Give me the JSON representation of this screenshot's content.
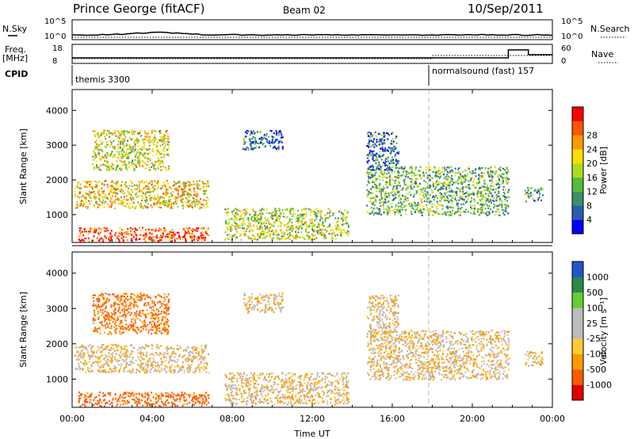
{
  "header": {
    "station": "Prince George (fitACF)",
    "beam": "Beam 02",
    "date": "10/Sep/2011"
  },
  "top_panels": {
    "noise_left_label": "N.Sky",
    "noise_right_label": "N.Search",
    "noise_ticks_left": [
      "10^5",
      "10^0"
    ],
    "noise_ticks_right": [
      "10^5",
      "10^0"
    ],
    "freq_left_label_1": "Freq.",
    "freq_left_label_2": "[MHz]",
    "freq_right_label": "Nave",
    "freq_ticks_left": [
      "18",
      "8"
    ],
    "freq_ticks_right": [
      "60",
      "0"
    ],
    "cpid_label": "CPID",
    "cpid_segments": [
      {
        "label": "themis 3300",
        "start_hour": 0.0
      },
      {
        "label": "normalsound (fast) 157",
        "start_hour": 18.0
      }
    ]
  },
  "colors": {
    "power": [
      "#0000ff",
      "#2a5db0",
      "#3d8f6a",
      "#55bb3a",
      "#aadd22",
      "#ffdd00",
      "#ff9900",
      "#ff5500",
      "#ff0000"
    ],
    "velocity": [
      "#e00000",
      "#ff5a00",
      "#ff9a00",
      "#ffcc33",
      "#bbbbbb",
      "#bbbbbb",
      "#66cc33",
      "#2a8a4a",
      "#2255cc"
    ],
    "grey_line": "#aaaaaa"
  },
  "chart_data": [
    {
      "type": "heatmap",
      "name": "power-panel",
      "ylabel": "Slant Range [km]",
      "y_ticks": [
        1000,
        2000,
        3000,
        4000
      ],
      "ylim": [
        200,
        4600
      ],
      "xlim": [
        0,
        24
      ],
      "colorbar_label": "Power [dB]",
      "colorbar_ticks": [
        "4",
        "8",
        "12",
        "16",
        "20",
        "24",
        "28"
      ],
      "scatter_regions": [
        {
          "x0": 0.3,
          "x1": 6.8,
          "ymin": 250,
          "ymax": 650,
          "value": 26
        },
        {
          "x0": 0.1,
          "x1": 6.8,
          "ymin": 1200,
          "ymax": 2000,
          "value": 18
        },
        {
          "x0": 1.0,
          "x1": 4.8,
          "ymin": 2300,
          "ymax": 3450,
          "value": 15
        },
        {
          "x0": 7.6,
          "x1": 13.8,
          "ymin": 300,
          "ymax": 1200,
          "value": 14
        },
        {
          "x0": 8.5,
          "x1": 10.5,
          "ymin": 2900,
          "ymax": 3450,
          "value": 6
        },
        {
          "x0": 14.7,
          "x1": 21.8,
          "ymin": 1000,
          "ymax": 2400,
          "value": 10
        },
        {
          "x0": 14.7,
          "x1": 16.3,
          "ymin": 2300,
          "ymax": 3400,
          "value": 6
        },
        {
          "x0": 22.6,
          "x1": 23.5,
          "ymin": 1400,
          "ymax": 1800,
          "value": 9
        }
      ]
    },
    {
      "type": "heatmap",
      "name": "velocity-panel",
      "xlabel": "Time UT",
      "ylabel": "Slant Range [km]",
      "y_ticks": [
        1000,
        2000,
        3000,
        4000
      ],
      "ylim": [
        200,
        4600
      ],
      "x_ticks": [
        "00:00",
        "04:00",
        "08:00",
        "12:00",
        "16:00",
        "20:00",
        "00:00"
      ],
      "xlim": [
        0,
        24
      ],
      "colorbar_label": "Velocity [m s⁻¹]",
      "colorbar_ticks": [
        "-1000",
        "-500",
        "-100",
        "-25",
        "25",
        "100",
        "500",
        "1000"
      ],
      "scatter_regions": [
        {
          "x0": 0.3,
          "x1": 6.8,
          "ymin": 250,
          "ymax": 650,
          "value": -150
        },
        {
          "x0": 0.1,
          "x1": 6.8,
          "ymin": 1200,
          "ymax": 2000,
          "value": 0
        },
        {
          "x0": 1.0,
          "x1": 4.8,
          "ymin": 2300,
          "ymax": 3450,
          "value": -120
        },
        {
          "x0": 7.6,
          "x1": 13.8,
          "ymin": 300,
          "ymax": 1200,
          "value": 0
        },
        {
          "x0": 8.5,
          "x1": 10.5,
          "ymin": 2900,
          "ymax": 3450,
          "value": 0
        },
        {
          "x0": 14.7,
          "x1": 21.8,
          "ymin": 1000,
          "ymax": 2400,
          "value": 0
        },
        {
          "x0": 14.7,
          "x1": 16.3,
          "ymin": 2300,
          "ymax": 3400,
          "value": 0
        },
        {
          "x0": 22.6,
          "x1": 23.5,
          "ymin": 1400,
          "ymax": 1800,
          "value": 0
        }
      ]
    }
  ]
}
